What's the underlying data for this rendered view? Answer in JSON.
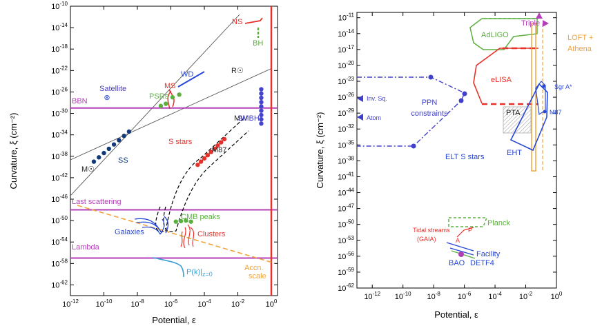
{
  "chart_data": [
    {
      "type": "scatter",
      "panel": "left",
      "xlabel": "Potential, ε",
      "ylabel": "Curvature, ξ (cm⁻²)",
      "xscale": "log",
      "yscale": "log",
      "xlim_exp": [
        -12,
        0
      ],
      "ylim_exp": [
        -64,
        -10
      ],
      "x_ticks": [
        -12,
        -10,
        -8,
        -6,
        -4,
        -2,
        0
      ],
      "y_ticks": [
        -10,
        -14,
        -18,
        -22,
        -26,
        -30,
        -34,
        -38,
        -42,
        -46,
        -50,
        -54,
        -58,
        -62
      ],
      "lines": [
        {
          "name": "BBN",
          "y_exp": -29,
          "color": "#b340b8"
        },
        {
          "name": "Last scattering",
          "y_exp": -48,
          "color": "#b340b8"
        },
        {
          "name": "Lambda",
          "y_exp": -57,
          "color": "#b340b8"
        }
      ],
      "vertical_limit": {
        "x_exp": 0,
        "color": "#e8302a"
      },
      "series": [
        {
          "name": "SS",
          "color": "#123a7a",
          "points": [
            [
              -10.6,
              -39.0
            ],
            [
              -10.3,
              -38.2
            ],
            [
              -10.0,
              -37.4
            ],
            [
              -9.7,
              -36.6
            ],
            [
              -9.4,
              -35.8
            ],
            [
              -9.1,
              -35.0
            ],
            [
              -8.8,
              -34.2
            ],
            [
              -8.5,
              -33.4
            ]
          ]
        },
        {
          "name": "S stars",
          "color": "#e8302a",
          "points": [
            [
              -4.4,
              -39.6
            ],
            [
              -4.2,
              -39.0
            ],
            [
              -4.0,
              -38.4
            ],
            [
              -3.8,
              -37.8
            ],
            [
              -3.6,
              -37.2
            ],
            [
              -3.4,
              -36.6
            ],
            [
              -3.2,
              -36.0
            ],
            [
              -3.0,
              -35.4
            ],
            [
              -2.8,
              -34.8
            ]
          ]
        },
        {
          "name": "SMBH",
          "color": "#4545cc",
          "points": [
            [
              -0.6,
              -25.5
            ],
            [
              -0.6,
              -26.3
            ],
            [
              -0.6,
              -27.1
            ],
            [
              -0.6,
              -27.9
            ],
            [
              -0.6,
              -28.7
            ],
            [
              -0.6,
              -29.5
            ],
            [
              -0.6,
              -30.3
            ],
            [
              -0.6,
              -31.1
            ],
            [
              -0.6,
              -31.9
            ]
          ]
        },
        {
          "name": "PSRs",
          "color": "#5bb040",
          "points": [
            [
              -6.6,
              -28.6
            ],
            [
              -6.3,
              -28.2
            ],
            [
              -5.9,
              -27.0
            ],
            [
              -5.5,
              -26.5
            ]
          ]
        },
        {
          "name": "CMB peaks",
          "color": "#5bb040",
          "points": [
            [
              -5.7,
              -50.2
            ],
            [
              -5.4,
              -50.1
            ],
            [
              -5.1,
              -50.0
            ],
            [
              -4.8,
              -50.2
            ]
          ]
        }
      ],
      "labels": {
        "ns": "NS",
        "bh": "BH",
        "rsun": "R☉",
        "wd": "WD",
        "ms": "MS",
        "satellite": "Satellite",
        "satellite_symbol": "⊗",
        "psrs": "PSRs",
        "bbn": "BBN",
        "mw": "MW",
        "smbh": "SMBH",
        "sstars": "S stars",
        "m87": "M87",
        "ss": "SS",
        "msun": "M☉",
        "last_scattering": "Last scattering",
        "cmb_peaks": "CMB peaks",
        "galaxies": "Galaxies",
        "clusters": "Clusters",
        "lambda": "Lambda",
        "pk": "P(k)|",
        "pk_sub": "z=0",
        "accn": "Accn.",
        "scale": "scale"
      }
    },
    {
      "type": "scatter",
      "panel": "right",
      "xlabel": "Potential, ε",
      "ylabel": "Curvature, ξ (cm⁻²)",
      "xscale": "log",
      "yscale": "log",
      "xlim_exp": [
        -13,
        0
      ],
      "ylim_exp": [
        -62,
        -10
      ],
      "x_ticks": [
        -12,
        -10,
        -8,
        -6,
        -4,
        -2,
        0
      ],
      "y_ticks": [
        -11,
        -14,
        -17,
        -20,
        -23,
        -26,
        -29,
        -32,
        -35,
        -38,
        -41,
        -44,
        -47,
        -50,
        -53,
        -56,
        -59,
        -62
      ],
      "labels": {
        "triple": "Triple",
        "adligo": "AdLIGO",
        "loft": "LOFT +",
        "athena": "Athena",
        "inv_sq": "Inv. Sq.",
        "atom": "Atom",
        "ppn1": "PPN",
        "ppn2": "constraints",
        "elisa": "eLISA",
        "sgra": "Sgr A*",
        "pta": "PTA",
        "m87": "M87",
        "eht": "EHT",
        "elt": "ELT S stars",
        "planck": "Planck",
        "tidal": "Tidal streams",
        "gaia": "(GAIA)",
        "p_label": "P",
        "a_label": "A",
        "facility": "Facility",
        "bao": "BAO",
        "detf4": "DETF4"
      }
    }
  ]
}
